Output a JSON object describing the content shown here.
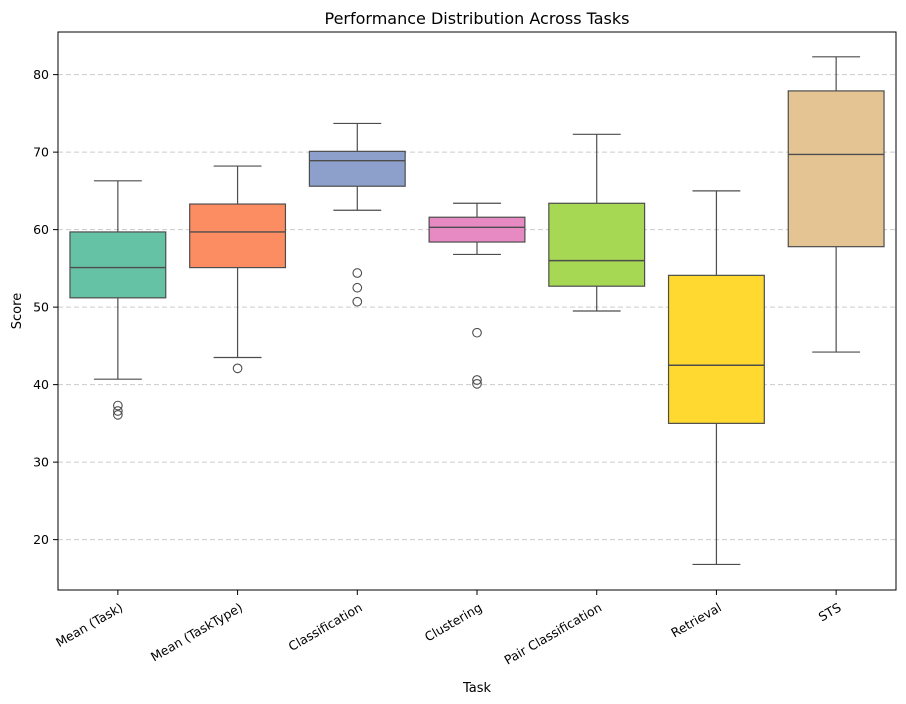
{
  "chart_data": {
    "type": "box",
    "title": "Performance Distribution Across Tasks",
    "xlabel": "Task",
    "ylabel": "Score",
    "ylim": [
      13.5,
      85.5
    ],
    "yticks": [
      20,
      30,
      40,
      50,
      60,
      70,
      80
    ],
    "grid": "horizontal dashed",
    "categories": [
      "Mean (Task)",
      "Mean (TaskType)",
      "Classification",
      "Clustering",
      "Pair Classification",
      "Retrieval",
      "STS"
    ],
    "boxes": [
      {
        "category": "Mean (Task)",
        "whisker_low": 40.7,
        "q1": 51.2,
        "median": 55.1,
        "q3": 59.7,
        "whisker_high": 66.3,
        "outliers": [
          37.3,
          36.6,
          36.1
        ],
        "color": "#66c2a5"
      },
      {
        "category": "Mean (TaskType)",
        "whisker_low": 43.5,
        "q1": 55.1,
        "median": 59.7,
        "q3": 63.3,
        "whisker_high": 68.2,
        "outliers": [
          42.1
        ],
        "color": "#fc8d62"
      },
      {
        "category": "Classification",
        "whisker_low": 62.5,
        "q1": 65.6,
        "median": 68.9,
        "q3": 70.1,
        "whisker_high": 73.7,
        "outliers": [
          54.4,
          52.5,
          50.7
        ],
        "color": "#8da0cb"
      },
      {
        "category": "Clustering",
        "whisker_low": 56.8,
        "q1": 58.4,
        "median": 60.3,
        "q3": 61.6,
        "whisker_high": 63.4,
        "outliers": [
          46.7,
          40.6,
          40.1
        ],
        "color": "#e78ac3"
      },
      {
        "category": "Pair Classification",
        "whisker_low": 49.5,
        "q1": 52.7,
        "median": 56.0,
        "q3": 63.4,
        "whisker_high": 72.3,
        "outliers": [],
        "color": "#a6d854"
      },
      {
        "category": "Retrieval",
        "whisker_low": 16.8,
        "q1": 35.0,
        "median": 42.5,
        "q3": 54.1,
        "whisker_high": 65.0,
        "outliers": [],
        "color": "#ffd92f"
      },
      {
        "category": "STS",
        "whisker_low": 44.2,
        "q1": 57.8,
        "median": 69.7,
        "q3": 77.9,
        "whisker_high": 82.3,
        "outliers": [],
        "color": "#e5c494"
      }
    ]
  }
}
